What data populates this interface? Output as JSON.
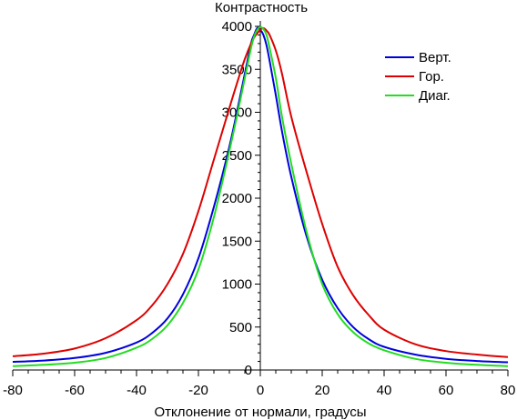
{
  "chart_data": {
    "type": "line",
    "ylabel": "Контрастность",
    "xlabel": "Отклонение от нормали, градусы",
    "xlim": [
      -80,
      80
    ],
    "ylim": [
      0,
      4000
    ],
    "x_ticks": [
      -80,
      -60,
      -40,
      -20,
      0,
      20,
      40,
      60,
      80
    ],
    "y_ticks": [
      0,
      500,
      1000,
      1500,
      2000,
      2500,
      3000,
      3500,
      4000
    ],
    "grid": false,
    "legend_position": "top-right",
    "x_axis_at": 0,
    "y_axis_at": 0,
    "series": [
      {
        "name": "Верт.",
        "color": "#0000dd",
        "x": [
          -80,
          -70,
          -60,
          -50,
          -40,
          -35,
          -30,
          -25,
          -20,
          -15,
          -10,
          -7,
          -5,
          -3,
          -2,
          -1,
          0,
          1,
          2,
          3,
          5,
          7,
          10,
          15,
          20,
          25,
          30,
          35,
          40,
          50,
          60,
          70,
          80
        ],
        "y": [
          95,
          110,
          140,
          200,
          320,
          430,
          600,
          880,
          1300,
          1900,
          2600,
          3100,
          3450,
          3800,
          3900,
          3980,
          3960,
          3900,
          3780,
          3600,
          3200,
          2780,
          2250,
          1550,
          1050,
          720,
          500,
          360,
          270,
          180,
          130,
          105,
          90
        ]
      },
      {
        "name": "Гор.",
        "color": "#dd0000",
        "x": [
          -80,
          -70,
          -60,
          -50,
          -40,
          -35,
          -30,
          -25,
          -20,
          -15,
          -10,
          -7,
          -5,
          -3,
          -2,
          -1,
          0,
          1,
          2,
          3,
          5,
          7,
          10,
          15,
          20,
          25,
          30,
          35,
          40,
          50,
          60,
          70,
          80
        ],
        "y": [
          160,
          190,
          250,
          370,
          580,
          750,
          1000,
          1350,
          1850,
          2450,
          3050,
          3400,
          3620,
          3800,
          3870,
          3920,
          3960,
          3980,
          3950,
          3900,
          3720,
          3450,
          2950,
          2300,
          1700,
          1200,
          870,
          640,
          470,
          300,
          220,
          180,
          150
        ]
      },
      {
        "name": "Диаг.",
        "color": "#22dd22",
        "x": [
          -80,
          -70,
          -60,
          -50,
          -40,
          -35,
          -30,
          -25,
          -20,
          -15,
          -10,
          -7,
          -5,
          -3,
          -2,
          -1,
          0,
          1,
          2,
          3,
          5,
          7,
          10,
          15,
          20,
          25,
          30,
          35,
          40,
          50,
          60,
          70,
          80
        ],
        "y": [
          45,
          60,
          85,
          140,
          260,
          360,
          520,
          780,
          1170,
          1780,
          2550,
          3050,
          3400,
          3750,
          3880,
          3960,
          3990,
          3970,
          3900,
          3750,
          3400,
          2950,
          2400,
          1600,
          1000,
          650,
          440,
          310,
          230,
          130,
          85,
          60,
          45
        ]
      }
    ]
  }
}
